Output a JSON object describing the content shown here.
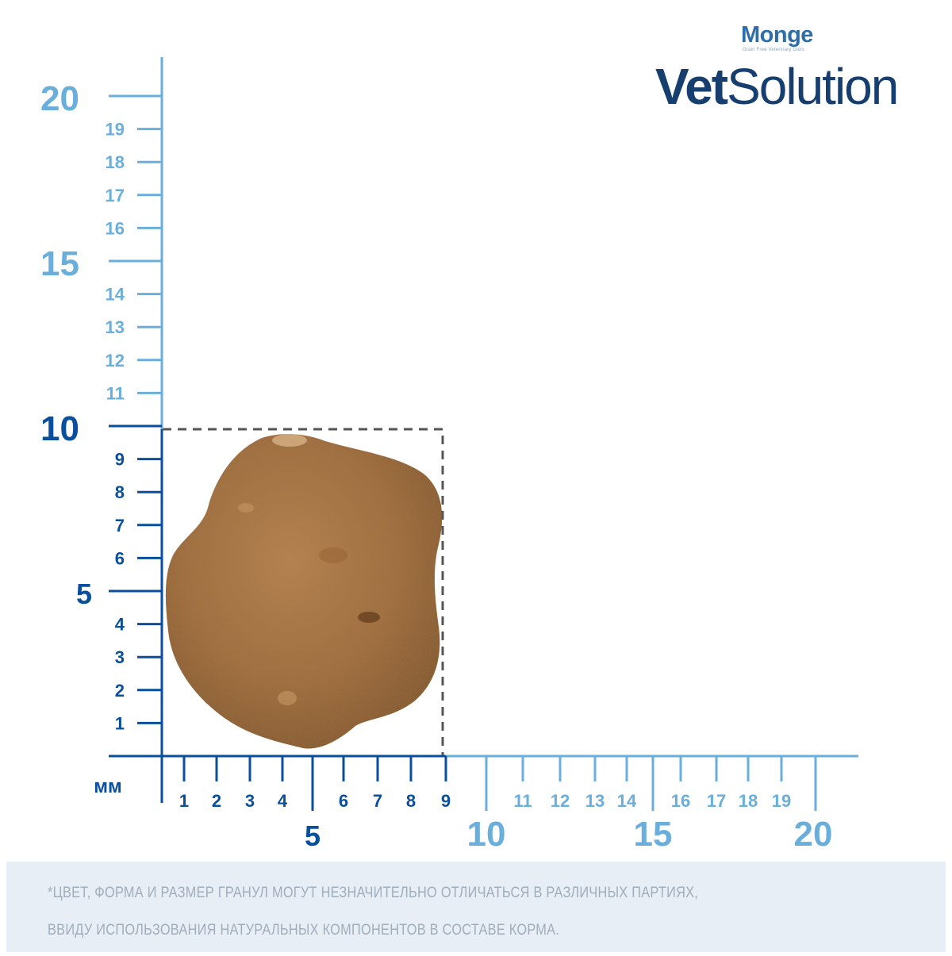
{
  "brand": {
    "monge": "Monge",
    "monge_tagline": "Grain Free Veterinary Diets",
    "product_bold": "Vet",
    "product_light": "Solution"
  },
  "ruler": {
    "unit_label": "мм",
    "y_major_labels": [
      "5",
      "10",
      "15",
      "20"
    ],
    "y_minor_labels": [
      "1",
      "2",
      "3",
      "4",
      "6",
      "7",
      "8",
      "9",
      "11",
      "12",
      "13",
      "14",
      "16",
      "17",
      "18",
      "19"
    ],
    "x_major_labels": [
      "5",
      "10",
      "15",
      "20"
    ],
    "x_minor_labels": [
      "1",
      "2",
      "3",
      "4",
      "6",
      "7",
      "8",
      "9",
      "11",
      "12",
      "13",
      "14",
      "16",
      "17",
      "18",
      "19"
    ],
    "dark_color": "#0a4f9c",
    "light_color": "#6aaedc",
    "kibble_width_mm": 9,
    "kibble_height_mm": 10
  },
  "image": {
    "kibble_icon": "kibble-icon"
  },
  "footnote": {
    "line1": "*ЦВЕТ, ФОРМА И РАЗМЕР ГРАНУЛ МОГУТ НЕЗНАЧИТЕЛЬНО ОТЛИЧАТЬСЯ В РАЗЛИЧНЫХ ПАРТИЯХ,",
    "line2": "ВВИДУ ИСПОЛЬЗОВАНИЯ НАТУРАЛЬНЫХ КОМПОНЕНТОВ В СОСТАВЕ КОРМА."
  }
}
